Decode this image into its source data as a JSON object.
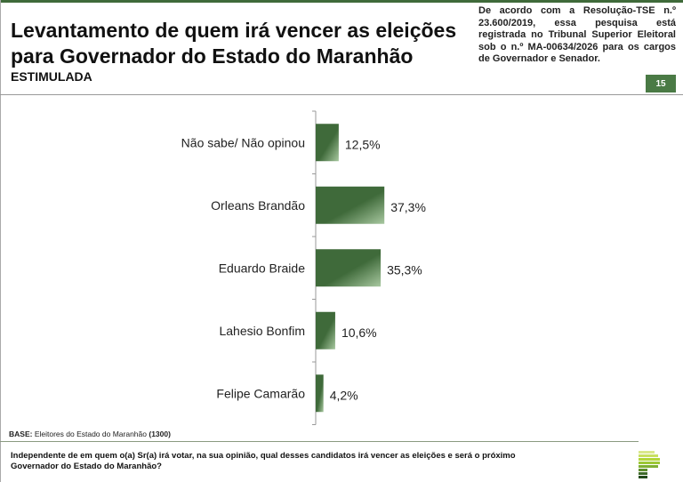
{
  "header": {
    "title": "Levantamento de quem irá vencer as eleições para Governador do Estado do Maranhão",
    "subtitle": "ESTIMULADA",
    "note": "De acordo com a Resolução-TSE n.º 23.600/2019, essa pesquisa está registrada no Tribunal Superior Eleitoral sob o n.º MA-00634/2026 para os cargos de Governador e Senador.",
    "page_number": "15"
  },
  "footer": {
    "base_label": "BASE:",
    "base_text": "Eleitores do Estado do Maranhão",
    "base_count": "(1300)",
    "question": "Independente de em quem o(a) Sr(a) irá votar, na sua opinião, qual desses candidatos irá vencer as eleições e será o próximo Governador do Estado do Maranhão?"
  },
  "colors": {
    "bar": "#3f6a3a",
    "accent": "#4a7a45"
  },
  "chart_data": {
    "type": "bar",
    "orientation": "horizontal",
    "categories": [
      "Não sabe/ Não opinou",
      "Orleans Brandão",
      "Eduardo Braide",
      "Lahesio Bonfim",
      "Felipe Camarão"
    ],
    "values": [
      12.5,
      37.3,
      35.3,
      10.6,
      4.2
    ],
    "labels": [
      "12,5%",
      "37,3%",
      "35,3%",
      "10,6%",
      "4,2%"
    ],
    "grid": false
  }
}
